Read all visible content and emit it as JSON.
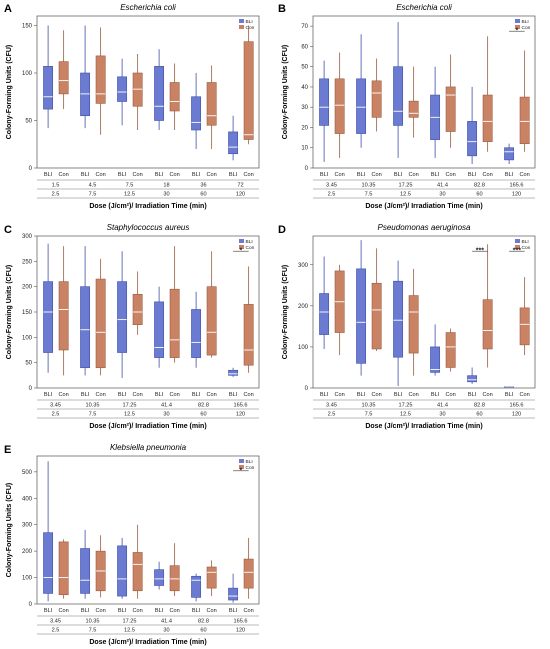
{
  "colors": {
    "bli": "#6B7BD1",
    "con": "#C98364",
    "bli_edge": "#3F4FA8",
    "con_edge": "#9A5A3E"
  },
  "chart_data": [
    {
      "letter": "A",
      "type": "box",
      "title": "Escherichia coli",
      "ylabel": "Colony-Forming Units (CFU)",
      "xlabel": "Dose (J/cm²)/ Irradiation Time (min)",
      "ylim": [
        0,
        160
      ],
      "yticks": [
        0,
        50,
        100,
        150
      ],
      "dose": [
        "1.5",
        "4.5",
        "7.5",
        "18",
        "36",
        "72"
      ],
      "time": [
        "2.5",
        "7.5",
        "12.5",
        "30",
        "60",
        "120"
      ],
      "legend": [
        "BLI",
        "Con"
      ],
      "significance": [],
      "series": [
        {
          "name": "BLI",
          "groups": [
            [
              42,
              62,
              75,
              107,
              150
            ],
            [
              42,
              55,
              78,
              100,
              150
            ],
            [
              45,
              70,
              80,
              96,
              115
            ],
            [
              40,
              50,
              65,
              107,
              125
            ],
            [
              20,
              40,
              48,
              75,
              100
            ],
            [
              8,
              15,
              22,
              38,
              55
            ]
          ]
        },
        {
          "name": "Con",
          "groups": [
            [
              62,
              78,
              92,
              112,
              145
            ],
            [
              35,
              68,
              78,
              118,
              148
            ],
            [
              40,
              65,
              83,
              100,
              120
            ],
            [
              40,
              60,
              70,
              90,
              110
            ],
            [
              20,
              45,
              55,
              90,
              108
            ],
            [
              25,
              30,
              35,
              133,
              150
            ]
          ]
        }
      ]
    },
    {
      "letter": "B",
      "type": "box",
      "title": "Escherichia coli",
      "ylabel": "Colony-Forming Units (CFU)",
      "xlabel": "Dose (J/cm²)/ Irradiation Time (min)",
      "ylim": [
        0,
        75
      ],
      "yticks": [
        0,
        10,
        20,
        30,
        40,
        50,
        60,
        70
      ],
      "dose": [
        "3.45",
        "10.35",
        "17.25",
        "41.4",
        "82.8",
        "165.6"
      ],
      "time": [
        "2.5",
        "7.5",
        "12.5",
        "30",
        "60",
        "120"
      ],
      "legend": [
        "BLI",
        "Con"
      ],
      "significance": [
        {
          "group": 5,
          "label": "*"
        }
      ],
      "series": [
        {
          "name": "BLI",
          "groups": [
            [
              3,
              21,
              30,
              44,
              53
            ],
            [
              10,
              17,
              30,
              44,
              66
            ],
            [
              5,
              21,
              28,
              50,
              72
            ],
            [
              5,
              14,
              25,
              36,
              50
            ],
            [
              2,
              6,
              13,
              23,
              40
            ],
            [
              2,
              4,
              8,
              10,
              12
            ]
          ]
        },
        {
          "name": "Con",
          "groups": [
            [
              5,
              17,
              31,
              44,
              57
            ],
            [
              18,
              25,
              37,
              43,
              54
            ],
            [
              15,
              25,
              27,
              33,
              50
            ],
            [
              10,
              18,
              36,
              40,
              56
            ],
            [
              8,
              13,
              23,
              36,
              65
            ],
            [
              8,
              12,
              23,
              35,
              58
            ]
          ]
        }
      ]
    },
    {
      "letter": "C",
      "type": "box",
      "title": "Staphylococcus aureus",
      "ylabel": "Colony-Forming Units (CFU)",
      "xlabel": "Dose (J/cm²)/ Irradiation Time (min)",
      "ylim": [
        0,
        300
      ],
      "yticks": [
        0,
        50,
        100,
        150,
        200,
        250,
        300
      ],
      "dose": [
        "3.45",
        "10.35",
        "17.25",
        "41.4",
        "82.8",
        "165.6"
      ],
      "time": [
        "2.5",
        "7.5",
        "12.5",
        "30",
        "60",
        "120"
      ],
      "legend": [
        "BLI",
        "Con"
      ],
      "significance": [
        {
          "group": 5,
          "label": "*"
        }
      ],
      "series": [
        {
          "name": "BLI",
          "groups": [
            [
              30,
              70,
              150,
              210,
              285
            ],
            [
              25,
              40,
              115,
              200,
              280
            ],
            [
              20,
              70,
              135,
              210,
              270
            ],
            [
              40,
              60,
              80,
              170,
              200
            ],
            [
              40,
              60,
              90,
              155,
              190
            ],
            [
              22,
              25,
              28,
              35,
              40
            ]
          ]
        },
        {
          "name": "Con",
          "groups": [
            [
              25,
              75,
              155,
              210,
              280
            ],
            [
              25,
              40,
              110,
              215,
              255
            ],
            [
              105,
              125,
              150,
              185,
              230
            ],
            [
              50,
              60,
              95,
              195,
              280
            ],
            [
              60,
              65,
              110,
              200,
              270
            ],
            [
              30,
              45,
              75,
              165,
              240
            ]
          ]
        }
      ]
    },
    {
      "letter": "D",
      "type": "box",
      "title": "Pseudomonas aeruginosa",
      "ylabel": "Colony-Forming Units (CFU)",
      "xlabel": "Dose (J/cm²)/ Irradiation Time (min)",
      "ylim": [
        0,
        370
      ],
      "yticks": [
        0,
        100,
        200,
        300
      ],
      "dose": [
        "3.45",
        "10.35",
        "17.25",
        "41.4",
        "82.8",
        "165.6"
      ],
      "time": [
        "2.5",
        "7.5",
        "12.5",
        "30",
        "60",
        "120"
      ],
      "legend": [
        "BLI",
        "Con"
      ],
      "significance": [
        {
          "group": 4,
          "label": "***"
        },
        {
          "group": 5,
          "label": "***"
        }
      ],
      "series": [
        {
          "name": "BLI",
          "groups": [
            [
              95,
              130,
              185,
              230,
              320
            ],
            [
              30,
              60,
              160,
              290,
              360
            ],
            [
              5,
              75,
              165,
              260,
              310
            ],
            [
              30,
              38,
              45,
              100,
              155
            ],
            [
              10,
              15,
              20,
              30,
              50
            ],
            [
              2,
              3,
              3,
              4,
              5
            ]
          ]
        },
        {
          "name": "Con",
          "groups": [
            [
              80,
              135,
              210,
              285,
              300
            ],
            [
              90,
              95,
              190,
              255,
              340
            ],
            [
              30,
              85,
              185,
              225,
              290
            ],
            [
              40,
              50,
              100,
              135,
              145
            ],
            [
              50,
              95,
              140,
              215,
              350
            ],
            [
              80,
              105,
              155,
              195,
              270
            ]
          ]
        }
      ]
    },
    {
      "letter": "E",
      "type": "box",
      "title": "Klebsiella pneumonia",
      "ylabel": "Colony-Forming Units (CFU)",
      "xlabel": "Dose (J/cm²)/ Irradiation Time (min)",
      "ylim": [
        0,
        560
      ],
      "yticks": [
        0,
        100,
        200,
        300,
        400,
        500
      ],
      "dose": [
        "3.45",
        "10.35",
        "17.25",
        "41.4",
        "82.8",
        "165.6"
      ],
      "time": [
        "2.5",
        "7.5",
        "12.5",
        "30",
        "60",
        "120"
      ],
      "legend": [
        "BLI",
        "Con"
      ],
      "significance": [
        {
          "group": 5,
          "label": "*"
        }
      ],
      "series": [
        {
          "name": "BLI",
          "groups": [
            [
              10,
              40,
              100,
              270,
              540
            ],
            [
              20,
              40,
              90,
              210,
              280
            ],
            [
              20,
              30,
              95,
              220,
              250
            ],
            [
              55,
              70,
              95,
              130,
              160
            ],
            [
              10,
              25,
              90,
              105,
              115
            ],
            [
              5,
              15,
              30,
              60,
              115
            ]
          ]
        },
        {
          "name": "Con",
          "groups": [
            [
              20,
              35,
              100,
              235,
              245
            ],
            [
              25,
              50,
              125,
              200,
              260
            ],
            [
              20,
              50,
              150,
              195,
              300
            ],
            [
              30,
              50,
              95,
              145,
              230
            ],
            [
              30,
              60,
              120,
              140,
              165
            ],
            [
              20,
              60,
              120,
              170,
              250
            ]
          ]
        }
      ]
    }
  ]
}
